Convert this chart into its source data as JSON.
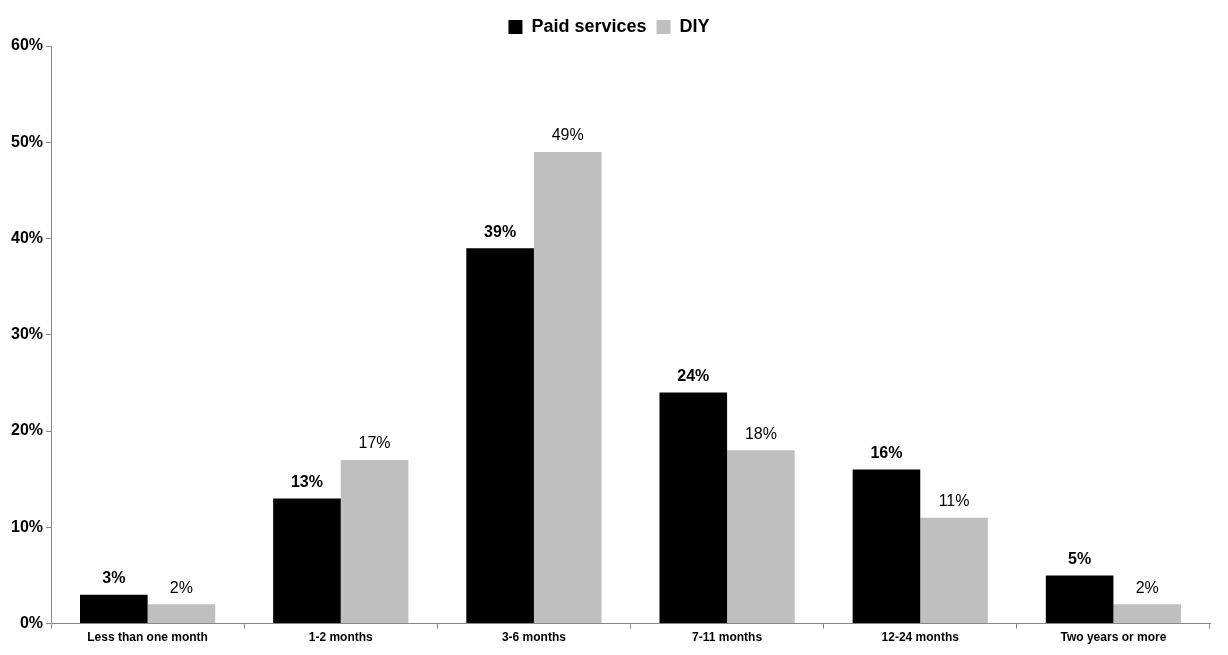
{
  "chart_data": {
    "type": "bar",
    "categories": [
      "Less than one month",
      "1-2 months",
      "3-6 months",
      "7-11 months",
      "12-24 months",
      "Two years or more"
    ],
    "series": [
      {
        "name": "Paid services",
        "color": "#000000",
        "values": [
          3,
          13,
          39,
          24,
          16,
          5
        ],
        "value_labels": [
          "3%",
          "13%",
          "39%",
          "24%",
          "16%",
          "5%"
        ]
      },
      {
        "name": "DIY",
        "color": "#bfbfbf",
        "values": [
          2,
          17,
          49,
          18,
          11,
          2
        ],
        "value_labels": [
          "2%",
          "17%",
          "49%",
          "18%",
          "11%",
          "2%"
        ]
      }
    ],
    "ylim": [
      0,
      60
    ],
    "yticks": [
      {
        "value": 0,
        "label": "0%"
      },
      {
        "value": 10,
        "label": "10%"
      },
      {
        "value": 20,
        "label": "20%"
      },
      {
        "value": 30,
        "label": "30%"
      },
      {
        "value": 40,
        "label": "40%"
      },
      {
        "value": 50,
        "label": "50%"
      },
      {
        "value": 60,
        "label": "60%"
      }
    ],
    "grid": false,
    "legend": "top"
  }
}
